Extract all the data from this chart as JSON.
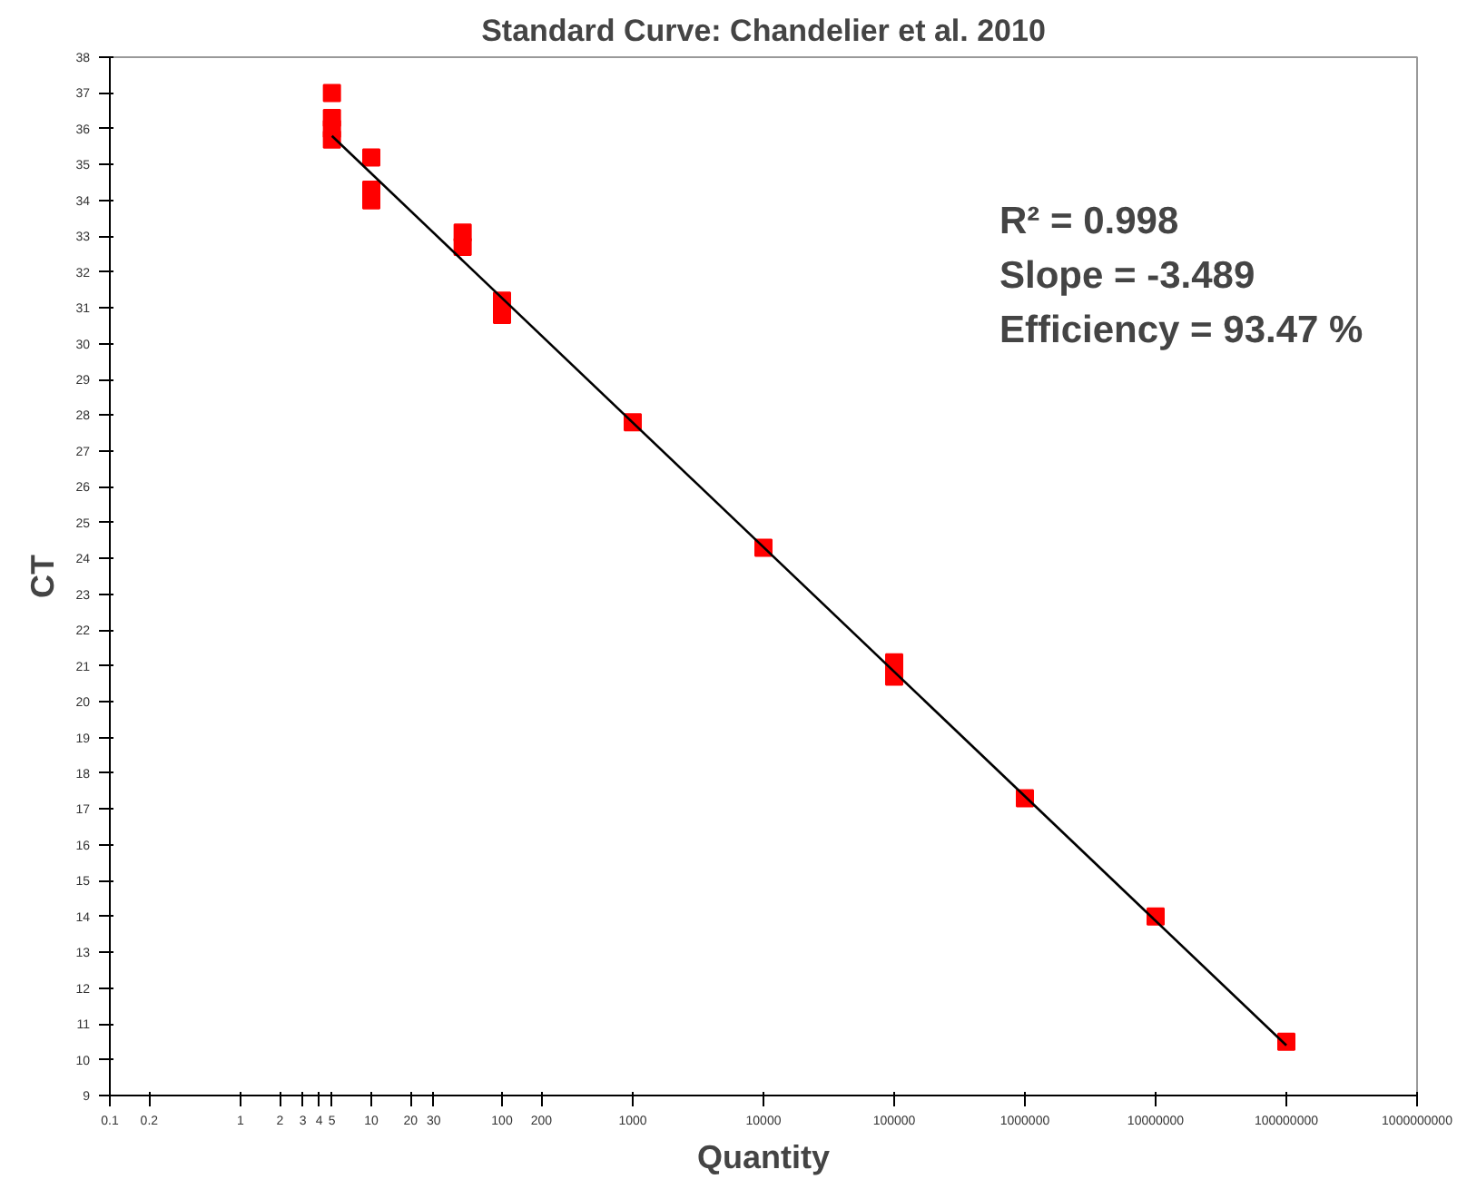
{
  "chart_data": {
    "type": "scatter",
    "title": "Standard Curve: Chandelier et al. 2010",
    "xlabel": "Quantity",
    "ylabel": "CT",
    "log": "x",
    "xlim": [
      0.1,
      1000000000
    ],
    "ylim": [
      9,
      38
    ],
    "xticks": [
      0.1,
      0.2,
      1,
      2,
      3,
      4,
      5,
      10,
      20,
      30,
      100,
      200,
      1000,
      10000,
      100000,
      1000000,
      10000000,
      100000000,
      1000000000
    ],
    "yticks": [
      9,
      10,
      11,
      12,
      13,
      14,
      15,
      16,
      17,
      18,
      19,
      20,
      21,
      22,
      23,
      24,
      25,
      26,
      27,
      28,
      29,
      30,
      31,
      32,
      33,
      34,
      35,
      36,
      37,
      38
    ],
    "grid": false,
    "marker": "square",
    "series": [
      {
        "color": "#ff0000",
        "x": [
          5,
          5,
          5,
          5,
          10,
          10,
          10,
          50,
          50,
          100,
          100,
          1000,
          10000,
          100000,
          100000,
          1000000,
          10000000,
          100000000
        ],
        "values": [
          37.0,
          36.3,
          36.0,
          35.7,
          35.2,
          34.3,
          34.0,
          33.1,
          32.7,
          31.2,
          30.8,
          27.8,
          24.3,
          21.1,
          20.7,
          17.3,
          14.0,
          10.5
        ]
      },
      {
        "type": "line",
        "marker": "none",
        "color": "#000000",
        "x": [
          5,
          100000000
        ],
        "values": [
          35.8,
          10.4
        ]
      }
    ],
    "annotations": [
      "R² = 0.998",
      "Slope = -3.489",
      "Efficiency = 93.47 %"
    ]
  }
}
